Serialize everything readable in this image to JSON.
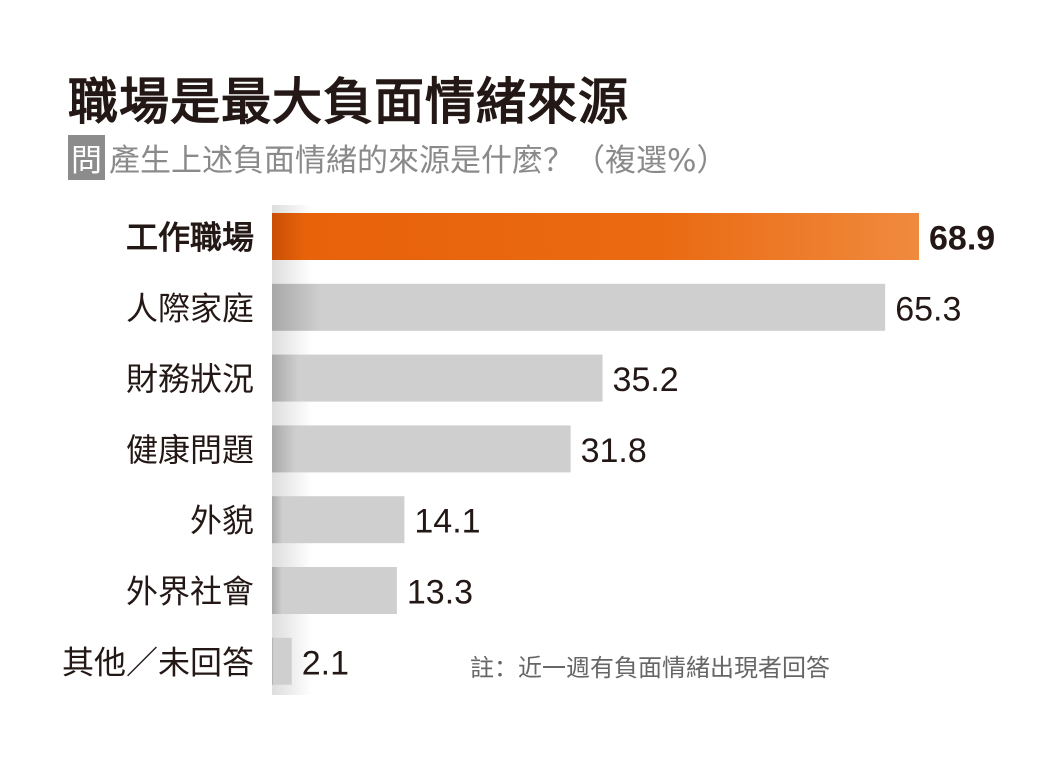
{
  "title": "職場是最大負面情緒來源",
  "subtitle_tag": "問",
  "subtitle": "產生上述負面情緒的來源是什麼？（複選%）",
  "note": "註：近一週有負面情緒出現者回答",
  "colors": {
    "highlight": "#e8620a",
    "bar": "#cfcfcf",
    "text": "#231815"
  },
  "chart_data": {
    "type": "bar",
    "orientation": "horizontal",
    "title": "職場是最大負面情緒來源",
    "unit": "%",
    "categories": [
      "工作職場",
      "人際家庭",
      "財務狀況",
      "健康問題",
      "外貌",
      "外界社會",
      "其他／未回答"
    ],
    "values": [
      68.9,
      65.3,
      35.2,
      31.8,
      14.1,
      13.3,
      2.1
    ],
    "highlight_index": 0,
    "xlim": [
      0,
      68.9
    ]
  }
}
